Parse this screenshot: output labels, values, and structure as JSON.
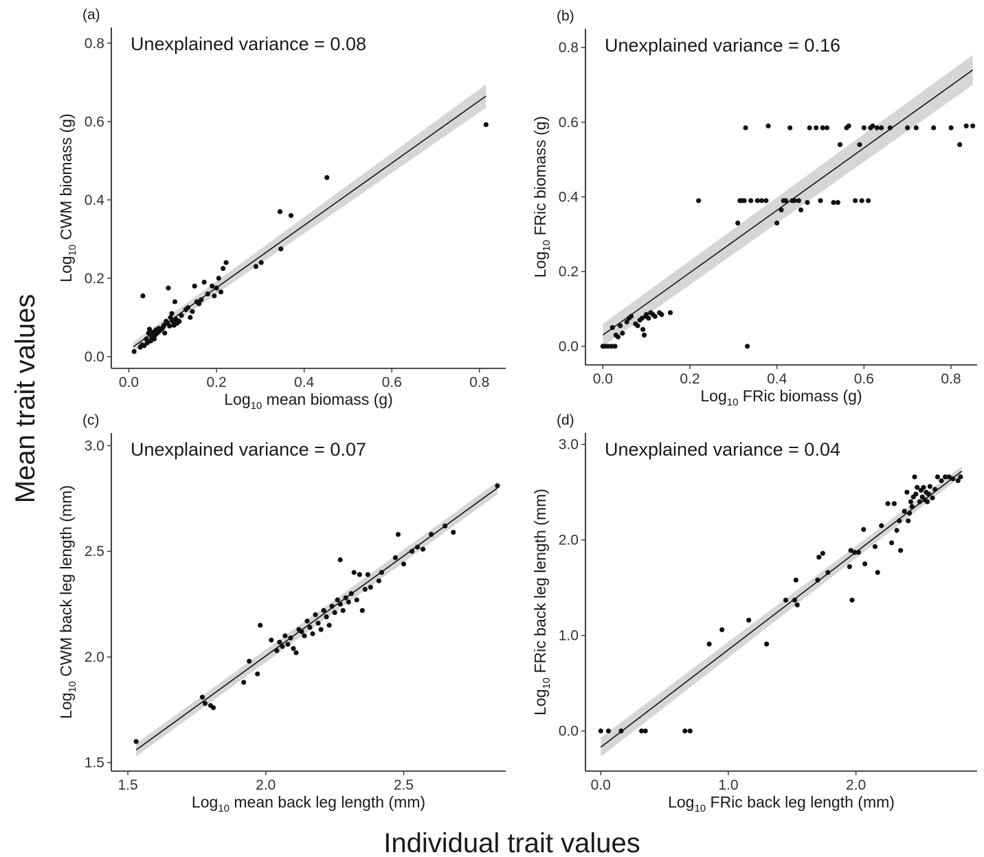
{
  "figure": {
    "y_title": "Mean trait values",
    "x_title": "Individual trait values"
  },
  "chart_data": [
    {
      "type": "scatter",
      "panel_label": "(a)",
      "annotation": "Unexplained variance = 0.08",
      "xlabel": {
        "prefix": "Log",
        "sub": "10",
        "rest": " mean biomass (g)"
      },
      "ylabel": {
        "prefix": "Log",
        "sub": "10",
        "rest": " CWM biomass (g)"
      },
      "xlim": [
        -0.04,
        0.86
      ],
      "ylim": [
        -0.03,
        0.84
      ],
      "xticks": [
        {
          "value": 0.0,
          "label": "0.0"
        },
        {
          "value": 0.2,
          "label": "0.2"
        },
        {
          "value": 0.4,
          "label": "0.4"
        },
        {
          "value": 0.6,
          "label": "0.6"
        },
        {
          "value": 0.8,
          "label": "0.8"
        }
      ],
      "yticks": [
        {
          "value": 0.0,
          "label": "0.0"
        },
        {
          "value": 0.2,
          "label": "0.2"
        },
        {
          "value": 0.4,
          "label": "0.4"
        },
        {
          "value": 0.6,
          "label": "0.6"
        },
        {
          "value": 0.8,
          "label": "0.8"
        }
      ],
      "fit": {
        "x": [
          0.01,
          0.815
        ],
        "y": [
          0.025,
          0.665
        ],
        "ci_start": 0.012,
        "ci_end": 0.03
      },
      "points": [
        [
          0.012,
          0.013
        ],
        [
          0.026,
          0.024
        ],
        [
          0.032,
          0.155
        ],
        [
          0.03,
          0.03
        ],
        [
          0.035,
          0.028
        ],
        [
          0.04,
          0.045
        ],
        [
          0.042,
          0.035
        ],
        [
          0.045,
          0.06
        ],
        [
          0.047,
          0.07
        ],
        [
          0.05,
          0.04
        ],
        [
          0.052,
          0.05
        ],
        [
          0.055,
          0.062
        ],
        [
          0.058,
          0.045
        ],
        [
          0.06,
          0.055
        ],
        [
          0.062,
          0.068
        ],
        [
          0.065,
          0.06
        ],
        [
          0.068,
          0.072
        ],
        [
          0.07,
          0.065
        ],
        [
          0.075,
          0.07
        ],
        [
          0.078,
          0.075
        ],
        [
          0.08,
          0.08
        ],
        [
          0.082,
          0.06
        ],
        [
          0.085,
          0.09
        ],
        [
          0.088,
          0.085
        ],
        [
          0.09,
          0.175
        ],
        [
          0.093,
          0.078
        ],
        [
          0.095,
          0.1
        ],
        [
          0.098,
          0.11
        ],
        [
          0.1,
          0.09
        ],
        [
          0.103,
          0.08
        ],
        [
          0.105,
          0.14
        ],
        [
          0.108,
          0.095
        ],
        [
          0.11,
          0.085
        ],
        [
          0.115,
          0.09
        ],
        [
          0.12,
          0.105
        ],
        [
          0.13,
          0.12
        ],
        [
          0.135,
          0.125
        ],
        [
          0.14,
          0.1
        ],
        [
          0.145,
          0.115
        ],
        [
          0.15,
          0.18
        ],
        [
          0.155,
          0.14
        ],
        [
          0.16,
          0.135
        ],
        [
          0.165,
          0.145
        ],
        [
          0.172,
          0.19
        ],
        [
          0.18,
          0.16
        ],
        [
          0.19,
          0.18
        ],
        [
          0.195,
          0.155
        ],
        [
          0.2,
          0.175
        ],
        [
          0.205,
          0.2
        ],
        [
          0.21,
          0.165
        ],
        [
          0.215,
          0.225
        ],
        [
          0.222,
          0.24
        ],
        [
          0.29,
          0.23
        ],
        [
          0.302,
          0.24
        ],
        [
          0.345,
          0.37
        ],
        [
          0.347,
          0.275
        ],
        [
          0.37,
          0.36
        ],
        [
          0.452,
          0.457
        ],
        [
          0.815,
          0.592
        ]
      ]
    },
    {
      "type": "scatter",
      "panel_label": "(b)",
      "annotation": "Unexplained variance = 0.16",
      "xlabel": {
        "prefix": "Log",
        "sub": "10",
        "rest": " FRic biomass (g)"
      },
      "ylabel": {
        "prefix": "Log",
        "sub": "10",
        "rest": " FRic biomass (g)"
      },
      "xlim": [
        -0.04,
        0.86
      ],
      "ylim": [
        -0.05,
        0.85
      ],
      "xticks": [
        {
          "value": 0.0,
          "label": "0.0"
        },
        {
          "value": 0.2,
          "label": "0.2"
        },
        {
          "value": 0.4,
          "label": "0.4"
        },
        {
          "value": 0.6,
          "label": "0.6"
        },
        {
          "value": 0.8,
          "label": "0.8"
        }
      ],
      "yticks": [
        {
          "value": 0.0,
          "label": "0.0"
        },
        {
          "value": 0.2,
          "label": "0.2"
        },
        {
          "value": 0.4,
          "label": "0.4"
        },
        {
          "value": 0.6,
          "label": "0.6"
        },
        {
          "value": 0.8,
          "label": "0.8"
        }
      ],
      "fit": {
        "x": [
          0.0,
          0.85
        ],
        "y": [
          0.03,
          0.74
        ],
        "ci_start": 0.03,
        "ci_end": 0.04
      },
      "points": [
        [
          0.0,
          0.0
        ],
        [
          0.005,
          0.0
        ],
        [
          0.012,
          0.0
        ],
        [
          0.02,
          0.0
        ],
        [
          0.028,
          0.0
        ],
        [
          0.022,
          0.05
        ],
        [
          0.03,
          0.03
        ],
        [
          0.035,
          0.025
        ],
        [
          0.04,
          0.055
        ],
        [
          0.045,
          0.035
        ],
        [
          0.055,
          0.065
        ],
        [
          0.06,
          0.075
        ],
        [
          0.065,
          0.08
        ],
        [
          0.075,
          0.06
        ],
        [
          0.08,
          0.055
        ],
        [
          0.085,
          0.07
        ],
        [
          0.09,
          0.075
        ],
        [
          0.092,
          0.045
        ],
        [
          0.095,
          0.03
        ],
        [
          0.098,
          0.08
        ],
        [
          0.1,
          0.085
        ],
        [
          0.105,
          0.075
        ],
        [
          0.11,
          0.09
        ],
        [
          0.115,
          0.085
        ],
        [
          0.12,
          0.08
        ],
        [
          0.13,
          0.09
        ],
        [
          0.135,
          0.085
        ],
        [
          0.155,
          0.09
        ],
        [
          0.22,
          0.39
        ],
        [
          0.31,
          0.33
        ],
        [
          0.315,
          0.39
        ],
        [
          0.32,
          0.39
        ],
        [
          0.325,
          0.39
        ],
        [
          0.328,
          0.585
        ],
        [
          0.332,
          0.0
        ],
        [
          0.34,
          0.39
        ],
        [
          0.355,
          0.39
        ],
        [
          0.365,
          0.39
        ],
        [
          0.375,
          0.39
        ],
        [
          0.38,
          0.59
        ],
        [
          0.4,
          0.33
        ],
        [
          0.41,
          0.365
        ],
        [
          0.415,
          0.39
        ],
        [
          0.42,
          0.39
        ],
        [
          0.43,
          0.585
        ],
        [
          0.435,
          0.39
        ],
        [
          0.44,
          0.39
        ],
        [
          0.45,
          0.39
        ],
        [
          0.455,
          0.365
        ],
        [
          0.47,
          0.385
        ],
        [
          0.475,
          0.585
        ],
        [
          0.49,
          0.585
        ],
        [
          0.5,
          0.39
        ],
        [
          0.505,
          0.585
        ],
        [
          0.515,
          0.585
        ],
        [
          0.53,
          0.385
        ],
        [
          0.54,
          0.385
        ],
        [
          0.545,
          0.54
        ],
        [
          0.56,
          0.585
        ],
        [
          0.565,
          0.59
        ],
        [
          0.58,
          0.39
        ],
        [
          0.59,
          0.54
        ],
        [
          0.595,
          0.39
        ],
        [
          0.61,
          0.39
        ],
        [
          0.6,
          0.585
        ],
        [
          0.615,
          0.585
        ],
        [
          0.62,
          0.59
        ],
        [
          0.63,
          0.585
        ],
        [
          0.64,
          0.585
        ],
        [
          0.66,
          0.585
        ],
        [
          0.7,
          0.585
        ],
        [
          0.72,
          0.585
        ],
        [
          0.76,
          0.585
        ],
        [
          0.8,
          0.585
        ],
        [
          0.82,
          0.54
        ],
        [
          0.835,
          0.59
        ],
        [
          0.85,
          0.59
        ]
      ]
    },
    {
      "type": "scatter",
      "panel_label": "(c)",
      "annotation": "Unexplained variance = 0.07",
      "xlabel": {
        "prefix": "Log",
        "sub": "10",
        "rest": " mean back leg length (mm)"
      },
      "ylabel": {
        "prefix": "Log",
        "sub": "10",
        "rest": " CWM back leg length (mm)"
      },
      "xlim": [
        1.44,
        2.87
      ],
      "ylim": [
        1.46,
        3.06
      ],
      "xticks": [
        {
          "value": 1.5,
          "label": "1.5"
        },
        {
          "value": 2.0,
          "label": "2.0"
        },
        {
          "value": 2.5,
          "label": "2.5"
        }
      ],
      "yticks": [
        {
          "value": 1.5,
          "label": "1.5"
        },
        {
          "value": 2.0,
          "label": "2.0"
        },
        {
          "value": 2.5,
          "label": "2.5"
        },
        {
          "value": 3.0,
          "label": "3.0"
        }
      ],
      "fit": {
        "x": [
          1.53,
          2.84
        ],
        "y": [
          1.56,
          2.8
        ],
        "ci_start": 0.03,
        "ci_end": 0.03
      },
      "points": [
        [
          1.53,
          1.6
        ],
        [
          1.77,
          1.81
        ],
        [
          1.78,
          1.78
        ],
        [
          1.8,
          1.77
        ],
        [
          1.81,
          1.76
        ],
        [
          1.92,
          1.88
        ],
        [
          1.94,
          1.98
        ],
        [
          1.97,
          1.92
        ],
        [
          1.98,
          2.15
        ],
        [
          2.02,
          2.08
        ],
        [
          2.04,
          2.03
        ],
        [
          2.05,
          2.07
        ],
        [
          2.06,
          2.05
        ],
        [
          2.07,
          2.1
        ],
        [
          2.08,
          2.06
        ],
        [
          2.09,
          2.09
        ],
        [
          2.1,
          2.04
        ],
        [
          2.11,
          2.02
        ],
        [
          2.12,
          2.13
        ],
        [
          2.13,
          2.12
        ],
        [
          2.14,
          2.1
        ],
        [
          2.15,
          2.17
        ],
        [
          2.16,
          2.14
        ],
        [
          2.17,
          2.11
        ],
        [
          2.18,
          2.2
        ],
        [
          2.19,
          2.16
        ],
        [
          2.2,
          2.13
        ],
        [
          2.21,
          2.22
        ],
        [
          2.22,
          2.19
        ],
        [
          2.23,
          2.15
        ],
        [
          2.24,
          2.24
        ],
        [
          2.25,
          2.21
        ],
        [
          2.26,
          2.27
        ],
        [
          2.27,
          2.25
        ],
        [
          2.27,
          2.46
        ],
        [
          2.28,
          2.22
        ],
        [
          2.29,
          2.28
        ],
        [
          2.3,
          2.26
        ],
        [
          2.31,
          2.3
        ],
        [
          2.32,
          2.4
        ],
        [
          2.33,
          2.27
        ],
        [
          2.34,
          2.39
        ],
        [
          2.35,
          2.22
        ],
        [
          2.36,
          2.32
        ],
        [
          2.37,
          2.39
        ],
        [
          2.38,
          2.33
        ],
        [
          2.41,
          2.36
        ],
        [
          2.42,
          2.4
        ],
        [
          2.47,
          2.47
        ],
        [
          2.48,
          2.58
        ],
        [
          2.5,
          2.44
        ],
        [
          2.53,
          2.5
        ],
        [
          2.55,
          2.52
        ],
        [
          2.57,
          2.51
        ],
        [
          2.6,
          2.58
        ],
        [
          2.65,
          2.62
        ],
        [
          2.68,
          2.59
        ],
        [
          2.84,
          2.81
        ]
      ]
    },
    {
      "type": "scatter",
      "panel_label": "(d)",
      "annotation": "Unexplained variance = 0.04",
      "xlabel": {
        "prefix": "Log",
        "sub": "10",
        "rest": " FRic back leg length (mm)"
      },
      "ylabel": {
        "prefix": "Log",
        "sub": "10",
        "rest": " FRic back leg length (mm)"
      },
      "xlim": [
        -0.12,
        2.95
      ],
      "ylim": [
        -0.42,
        3.12
      ],
      "xticks": [
        {
          "value": 0.0,
          "label": "0.0"
        },
        {
          "value": 1.0,
          "label": "1.0"
        },
        {
          "value": 2.0,
          "label": "2.0"
        }
      ],
      "yticks": [
        {
          "value": 0.0,
          "label": "0.0"
        },
        {
          "value": 1.0,
          "label": "1.0"
        },
        {
          "value": 2.0,
          "label": "2.0"
        },
        {
          "value": 3.0,
          "label": "3.0"
        }
      ],
      "fit": {
        "x": [
          0.0,
          2.83
        ],
        "y": [
          -0.17,
          2.72
        ],
        "ci_start": 0.1,
        "ci_end": 0.05
      },
      "points": [
        [
          0.0,
          0.0
        ],
        [
          0.06,
          0.0
        ],
        [
          0.16,
          0.0
        ],
        [
          0.32,
          0.0
        ],
        [
          0.35,
          0.0
        ],
        [
          0.66,
          0.0
        ],
        [
          0.7,
          0.0
        ],
        [
          0.85,
          0.91
        ],
        [
          0.95,
          1.06
        ],
        [
          1.16,
          1.16
        ],
        [
          1.3,
          0.91
        ],
        [
          1.45,
          1.37
        ],
        [
          1.52,
          1.37
        ],
        [
          1.53,
          1.58
        ],
        [
          1.54,
          1.32
        ],
        [
          1.7,
          1.58
        ],
        [
          1.71,
          1.82
        ],
        [
          1.74,
          1.86
        ],
        [
          1.78,
          1.66
        ],
        [
          1.95,
          1.72
        ],
        [
          1.96,
          1.89
        ],
        [
          1.97,
          1.37
        ],
        [
          1.99,
          1.87
        ],
        [
          2.02,
          1.87
        ],
        [
          2.06,
          2.11
        ],
        [
          2.07,
          1.75
        ],
        [
          2.15,
          1.93
        ],
        [
          2.17,
          1.66
        ],
        [
          2.2,
          2.15
        ],
        [
          2.25,
          2.38
        ],
        [
          2.28,
          1.97
        ],
        [
          2.3,
          2.38
        ],
        [
          2.32,
          2.1
        ],
        [
          2.34,
          2.2
        ],
        [
          2.35,
          1.89
        ],
        [
          2.38,
          2.3
        ],
        [
          2.4,
          2.5
        ],
        [
          2.41,
          2.2
        ],
        [
          2.42,
          2.28
        ],
        [
          2.43,
          2.4
        ],
        [
          2.44,
          2.35
        ],
        [
          2.45,
          2.45
        ],
        [
          2.46,
          2.66
        ],
        [
          2.47,
          2.48
        ],
        [
          2.48,
          2.55
        ],
        [
          2.5,
          2.4
        ],
        [
          2.51,
          2.52
        ],
        [
          2.52,
          2.45
        ],
        [
          2.53,
          2.55
        ],
        [
          2.54,
          2.42
        ],
        [
          2.55,
          2.5
        ],
        [
          2.56,
          2.4
        ],
        [
          2.57,
          2.48
        ],
        [
          2.58,
          2.56
        ],
        [
          2.6,
          2.44
        ],
        [
          2.62,
          2.53
        ],
        [
          2.64,
          2.66
        ],
        [
          2.67,
          2.62
        ],
        [
          2.7,
          2.66
        ],
        [
          2.73,
          2.66
        ],
        [
          2.76,
          2.64
        ],
        [
          2.8,
          2.62
        ],
        [
          2.82,
          2.66
        ]
      ]
    }
  ]
}
